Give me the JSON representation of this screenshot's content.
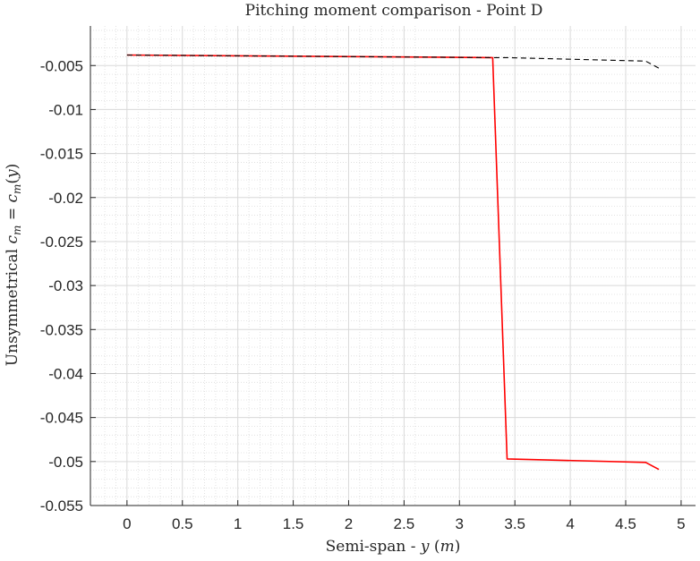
{
  "chart_data": {
    "type": "line",
    "title": "Pitching moment comparison - Point D",
    "xlabel": {
      "prefix": "Semi-span - ",
      "var": "y",
      "unit_open": " (",
      "unit": "m",
      "unit_close": ")"
    },
    "ylabel": {
      "prefix": "Unsymmetrical ",
      "lhs_base": "c",
      "lhs_sub": "m",
      "equals": " = ",
      "rhs_base": "c",
      "rhs_sub": "m",
      "rhs_arg_open": "(",
      "rhs_arg": "y",
      "rhs_arg_close": ")"
    },
    "xlim": [
      -0.33,
      5.13
    ],
    "ylim": [
      -0.055,
      -0.0005
    ],
    "x_ticks": [
      0,
      0.5,
      1,
      1.5,
      2,
      2.5,
      3,
      3.5,
      4,
      4.5,
      5
    ],
    "x_tick_labels": [
      "0",
      "0.5",
      "1",
      "1.5",
      "2",
      "2.5",
      "3",
      "3.5",
      "4",
      "4.5",
      "5"
    ],
    "y_ticks": [
      -0.005,
      -0.01,
      -0.015,
      -0.02,
      -0.025,
      -0.03,
      -0.035,
      -0.04,
      -0.045,
      -0.05,
      -0.055
    ],
    "y_tick_labels": [
      "-0.005",
      "-0.01",
      "-0.015",
      "-0.02",
      "-0.025",
      "-0.03",
      "-0.035",
      "-0.04",
      "-0.045",
      "-0.05",
      "-0.055"
    ],
    "grid": true,
    "minor_grid": true,
    "series": [
      {
        "color": "#ff0000",
        "style": "solid",
        "x": [
          0,
          3.3,
          3.43,
          4.68,
          4.8
        ],
        "y": [
          -0.0038,
          -0.0041,
          -0.0497,
          -0.0501,
          -0.0509
        ]
      },
      {
        "color": "#000000",
        "style": "dashed",
        "x": [
          0,
          3.3,
          3.43,
          4.68,
          4.8
        ],
        "y": [
          -0.0038,
          -0.0041,
          -0.0041,
          -0.0045,
          -0.0053
        ]
      }
    ]
  }
}
